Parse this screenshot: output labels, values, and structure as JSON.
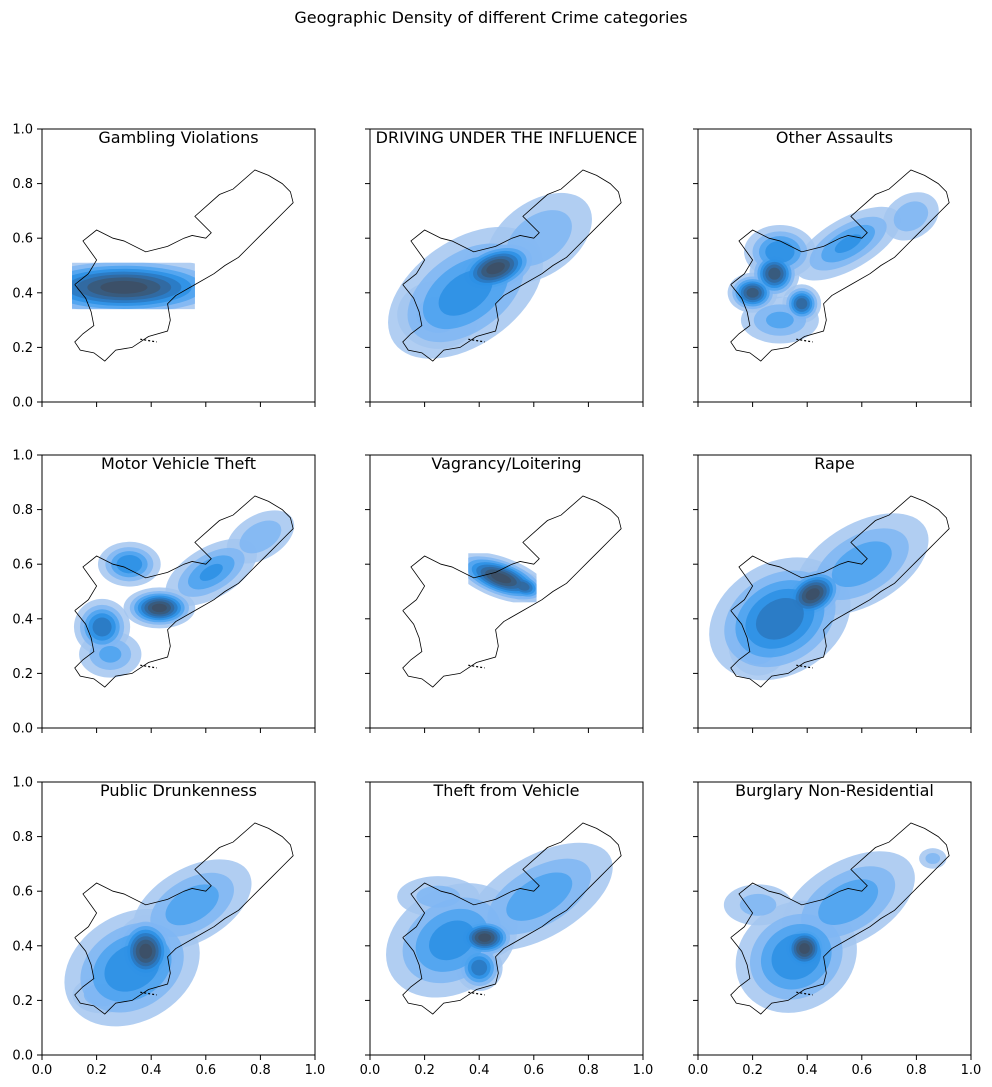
{
  "figure": {
    "title": "Geographic Density of different Crime categories"
  },
  "colors": {
    "levels": [
      "#a3c6f0",
      "#7fb6f3",
      "#4ba2ef",
      "#2b8fe4",
      "#2a78c0",
      "#32679b",
      "#3a5878",
      "#3d4f64"
    ],
    "outline": "#000000"
  },
  "chart_data": [
    {
      "type": "heatmap",
      "title": "Gambling Violations",
      "xlim": [
        0,
        1
      ],
      "ylim": [
        0,
        1
      ],
      "xticks": [
        "0.0",
        "0.2",
        "0.4",
        "0.6",
        "0.8",
        "1.0"
      ],
      "yticks": [
        "0.0",
        "0.2",
        "0.4",
        "0.6",
        "0.8",
        "1.0"
      ],
      "show_xticklabels": false,
      "show_yticklabels": true,
      "clip_rect": [
        0.11,
        0.34,
        0.56,
        0.51
      ],
      "kde": [
        {
          "x": 0.3,
          "y": 0.42,
          "sx": 0.22,
          "sy": 0.06,
          "w": 1.0,
          "rot": 0
        },
        {
          "x": 0.6,
          "y": 0.44,
          "sx": 0.18,
          "sy": 0.04,
          "w": 0.35,
          "rot": 25
        },
        {
          "x": 0.05,
          "y": 0.4,
          "sx": 0.08,
          "sy": 0.05,
          "w": 0.4,
          "rot": 0
        }
      ]
    },
    {
      "type": "heatmap",
      "title": "DRIVING UNDER THE INFLUENCE",
      "xlim": [
        0,
        1
      ],
      "ylim": [
        0,
        1
      ],
      "xticks": [
        "0.0",
        "0.2",
        "0.4",
        "0.6",
        "0.8",
        "1.0"
      ],
      "yticks": [
        "0.0",
        "0.2",
        "0.4",
        "0.6",
        "0.8",
        "1.0"
      ],
      "show_xticklabels": false,
      "show_yticklabels": false,
      "kde": [
        {
          "x": 0.46,
          "y": 0.49,
          "sx": 0.09,
          "sy": 0.05,
          "w": 1.0,
          "rot": 20
        },
        {
          "x": 0.35,
          "y": 0.4,
          "sx": 0.2,
          "sy": 0.12,
          "w": 0.55,
          "rot": 35
        },
        {
          "x": 0.62,
          "y": 0.6,
          "sx": 0.16,
          "sy": 0.1,
          "w": 0.35,
          "rot": 35
        },
        {
          "x": 0.25,
          "y": 0.32,
          "sx": 0.12,
          "sy": 0.1,
          "w": 0.3,
          "rot": 0
        }
      ]
    },
    {
      "type": "heatmap",
      "title": "Other Assaults",
      "xlim": [
        0,
        1
      ],
      "ylim": [
        0,
        1
      ],
      "xticks": [
        "0.0",
        "0.2",
        "0.4",
        "0.6",
        "0.8",
        "1.0"
      ],
      "yticks": [
        "0.0",
        "0.2",
        "0.4",
        "0.6",
        "0.8",
        "1.0"
      ],
      "show_xticklabels": false,
      "show_yticklabels": false,
      "kde": [
        {
          "x": 0.28,
          "y": 0.47,
          "sx": 0.05,
          "sy": 0.05,
          "w": 0.9,
          "rot": 0
        },
        {
          "x": 0.2,
          "y": 0.4,
          "sx": 0.05,
          "sy": 0.04,
          "w": 0.9,
          "rot": 0
        },
        {
          "x": 0.38,
          "y": 0.36,
          "sx": 0.04,
          "sy": 0.04,
          "w": 0.8,
          "rot": 0
        },
        {
          "x": 0.3,
          "y": 0.55,
          "sx": 0.08,
          "sy": 0.06,
          "w": 0.6,
          "rot": 0
        },
        {
          "x": 0.55,
          "y": 0.58,
          "sx": 0.14,
          "sy": 0.06,
          "w": 0.5,
          "rot": 30
        },
        {
          "x": 0.78,
          "y": 0.68,
          "sx": 0.08,
          "sy": 0.06,
          "w": 0.35,
          "rot": 30
        },
        {
          "x": 0.3,
          "y": 0.3,
          "sx": 0.1,
          "sy": 0.06,
          "w": 0.4,
          "rot": 0
        }
      ]
    },
    {
      "type": "heatmap",
      "title": "Motor Vehicle Theft",
      "xlim": [
        0,
        1
      ],
      "ylim": [
        0,
        1
      ],
      "xticks": [
        "0.0",
        "0.2",
        "0.4",
        "0.6",
        "0.8",
        "1.0"
      ],
      "yticks": [
        "0.0",
        "0.2",
        "0.4",
        "0.6",
        "0.8",
        "1.0"
      ],
      "show_xticklabels": false,
      "show_yticklabels": true,
      "kde": [
        {
          "x": 0.43,
          "y": 0.44,
          "sx": 0.07,
          "sy": 0.04,
          "w": 1.0,
          "rot": 0
        },
        {
          "x": 0.32,
          "y": 0.6,
          "sx": 0.07,
          "sy": 0.05,
          "w": 0.6,
          "rot": 0
        },
        {
          "x": 0.22,
          "y": 0.37,
          "sx": 0.06,
          "sy": 0.06,
          "w": 0.7,
          "rot": 0
        },
        {
          "x": 0.62,
          "y": 0.57,
          "sx": 0.12,
          "sy": 0.06,
          "w": 0.5,
          "rot": 30
        },
        {
          "x": 0.8,
          "y": 0.7,
          "sx": 0.1,
          "sy": 0.06,
          "w": 0.35,
          "rot": 30
        },
        {
          "x": 0.25,
          "y": 0.27,
          "sx": 0.08,
          "sy": 0.06,
          "w": 0.4,
          "rot": 0
        }
      ]
    },
    {
      "type": "heatmap",
      "title": "Vagrancy/Loitering",
      "xlim": [
        0,
        1
      ],
      "ylim": [
        0,
        1
      ],
      "xticks": [
        "0.0",
        "0.2",
        "0.4",
        "0.6",
        "0.8",
        "1.0"
      ],
      "yticks": [
        "0.0",
        "0.2",
        "0.4",
        "0.6",
        "0.8",
        "1.0"
      ],
      "show_xticklabels": false,
      "show_yticklabels": false,
      "clip_rect": [
        0.36,
        0.46,
        0.61,
        0.64
      ],
      "kde": [
        {
          "x": 0.48,
          "y": 0.55,
          "sx": 0.1,
          "sy": 0.04,
          "w": 1.0,
          "rot": -20
        },
        {
          "x": 0.56,
          "y": 0.52,
          "sx": 0.05,
          "sy": 0.03,
          "w": 0.8,
          "rot": -20
        }
      ]
    },
    {
      "type": "heatmap",
      "title": "Rape",
      "xlim": [
        0,
        1
      ],
      "ylim": [
        0,
        1
      ],
      "xticks": [
        "0.0",
        "0.2",
        "0.4",
        "0.6",
        "0.8",
        "1.0"
      ],
      "yticks": [
        "0.0",
        "0.2",
        "0.4",
        "0.6",
        "0.8",
        "1.0"
      ],
      "show_xticklabels": false,
      "show_yticklabels": false,
      "kde": [
        {
          "x": 0.42,
          "y": 0.49,
          "sx": 0.07,
          "sy": 0.05,
          "w": 1.0,
          "rot": 30
        },
        {
          "x": 0.3,
          "y": 0.4,
          "sx": 0.16,
          "sy": 0.12,
          "w": 0.7,
          "rot": 30
        },
        {
          "x": 0.6,
          "y": 0.6,
          "sx": 0.18,
          "sy": 0.1,
          "w": 0.45,
          "rot": 30
        },
        {
          "x": 0.22,
          "y": 0.3,
          "sx": 0.08,
          "sy": 0.08,
          "w": 0.35,
          "rot": 0
        }
      ]
    },
    {
      "type": "heatmap",
      "title": "Public Drunkenness",
      "xlim": [
        0,
        1
      ],
      "ylim": [
        0,
        1
      ],
      "xticks": [
        "0.0",
        "0.2",
        "0.4",
        "0.6",
        "0.8",
        "1.0"
      ],
      "yticks": [
        "0.0",
        "0.2",
        "0.4",
        "0.6",
        "0.8",
        "1.0"
      ],
      "show_xticklabels": true,
      "show_yticklabels": true,
      "kde": [
        {
          "x": 0.38,
          "y": 0.38,
          "sx": 0.06,
          "sy": 0.07,
          "w": 1.0,
          "rot": 0
        },
        {
          "x": 0.33,
          "y": 0.32,
          "sx": 0.16,
          "sy": 0.12,
          "w": 0.6,
          "rot": 30
        },
        {
          "x": 0.55,
          "y": 0.55,
          "sx": 0.16,
          "sy": 0.09,
          "w": 0.45,
          "rot": 30
        },
        {
          "x": 0.22,
          "y": 0.22,
          "sx": 0.08,
          "sy": 0.05,
          "w": 0.35,
          "rot": 0
        }
      ]
    },
    {
      "type": "heatmap",
      "title": "Theft from Vehicle",
      "xlim": [
        0,
        1
      ],
      "ylim": [
        0,
        1
      ],
      "xticks": [
        "0.0",
        "0.2",
        "0.4",
        "0.6",
        "0.8",
        "1.0"
      ],
      "yticks": [
        "0.0",
        "0.2",
        "0.4",
        "0.6",
        "0.8",
        "1.0"
      ],
      "show_xticklabels": true,
      "show_yticklabels": false,
      "kde": [
        {
          "x": 0.42,
          "y": 0.43,
          "sx": 0.06,
          "sy": 0.04,
          "w": 1.0,
          "rot": 0
        },
        {
          "x": 0.4,
          "y": 0.32,
          "sx": 0.05,
          "sy": 0.05,
          "w": 0.7,
          "rot": 0
        },
        {
          "x": 0.3,
          "y": 0.42,
          "sx": 0.16,
          "sy": 0.12,
          "w": 0.55,
          "rot": 30
        },
        {
          "x": 0.62,
          "y": 0.58,
          "sx": 0.2,
          "sy": 0.1,
          "w": 0.45,
          "rot": 30
        },
        {
          "x": 0.25,
          "y": 0.58,
          "sx": 0.12,
          "sy": 0.06,
          "w": 0.3,
          "rot": 0
        }
      ]
    },
    {
      "type": "heatmap",
      "title": "Burglary Non-Residential",
      "xlim": [
        0,
        1
      ],
      "ylim": [
        0,
        1
      ],
      "xticks": [
        "0.0",
        "0.2",
        "0.4",
        "0.6",
        "0.8",
        "1.0"
      ],
      "yticks": [
        "0.0",
        "0.2",
        "0.4",
        "0.6",
        "0.8",
        "1.0"
      ],
      "show_xticklabels": true,
      "show_yticklabels": false,
      "kde": [
        {
          "x": 0.39,
          "y": 0.39,
          "sx": 0.05,
          "sy": 0.05,
          "w": 1.0,
          "rot": 0
        },
        {
          "x": 0.36,
          "y": 0.36,
          "sx": 0.14,
          "sy": 0.12,
          "w": 0.6,
          "rot": 30
        },
        {
          "x": 0.55,
          "y": 0.56,
          "sx": 0.18,
          "sy": 0.1,
          "w": 0.45,
          "rot": 30
        },
        {
          "x": 0.22,
          "y": 0.55,
          "sx": 0.1,
          "sy": 0.06,
          "w": 0.3,
          "rot": 0
        },
        {
          "x": 0.86,
          "y": 0.72,
          "sx": 0.04,
          "sy": 0.03,
          "w": 0.3,
          "rot": 0
        }
      ]
    }
  ]
}
